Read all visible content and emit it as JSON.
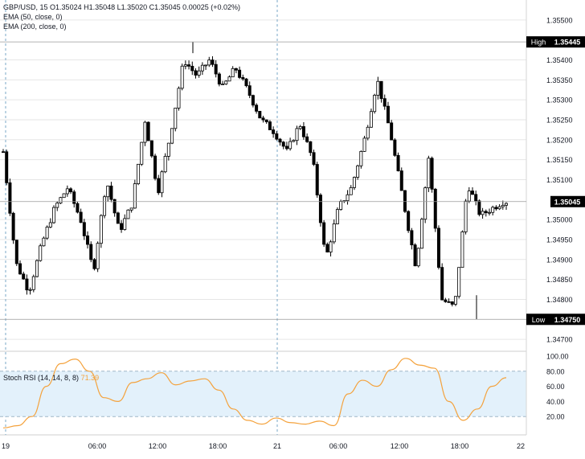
{
  "legend": {
    "symbol": "GBP/USD, 15",
    "ohlc": "O1.35024 H1.35048 L1.35020 C1.35045 0.00025 (+0.02%)",
    "ema50": "EMA (50, close, 0)",
    "ema200": "EMA (200, close, 0)"
  },
  "rsi_legend": {
    "label": "Stoch RSI (14, 14, 8, 8)",
    "value": "71.39"
  },
  "colors": {
    "candle": "#000000",
    "rsi": "#f4a23c",
    "band_fill": "#e3f1fb",
    "band_line": "#9fb7c9",
    "vline": "#7aa7c7",
    "label_bg": "#000000",
    "label_fg": "#ffffff"
  },
  "price_labels": {
    "high": {
      "tag": "High",
      "value": "1.35445"
    },
    "last": {
      "value": "1.35045"
    },
    "low": {
      "tag": "Low",
      "value": "1.34750"
    }
  },
  "chart_data": [
    {
      "type": "candlestick",
      "title": "GBP/USD, 15",
      "y_ticks": [
        "1.35500",
        "1.35400",
        "1.35350",
        "1.35300",
        "1.35250",
        "1.35200",
        "1.35150",
        "1.35100",
        "1.35000",
        "1.34950",
        "1.34900",
        "1.34850",
        "1.34800",
        "1.34700"
      ],
      "ylim": [
        1.3467,
        1.3555
      ],
      "x_ticks": [
        "19",
        "06:00",
        "12:00",
        "18:00",
        "21",
        "06:00",
        "12:00",
        "18:00",
        "22"
      ],
      "high": 1.35445,
      "low": 1.3475,
      "last": 1.35045,
      "ohlc_path_approx": [
        1.3517,
        1.3489,
        1.3482,
        1.3494,
        1.3503,
        1.3508,
        1.35,
        1.3487,
        1.351,
        1.3497,
        1.3504,
        1.3525,
        1.3507,
        1.3522,
        1.354,
        1.3536,
        1.354,
        1.3533,
        1.3538,
        1.3532,
        1.3525,
        1.3522,
        1.3517,
        1.3524,
        1.3515,
        1.349,
        1.3503,
        1.3508,
        1.352,
        1.3535,
        1.3522,
        1.3505,
        1.3488,
        1.3516,
        1.348,
        1.3478,
        1.3509,
        1.3501,
        1.3503,
        1.3505
      ]
    },
    {
      "type": "line",
      "title": "Stoch RSI (14, 14, 8, 8)",
      "y_ticks": [
        "100.00",
        "80.00",
        "60.00",
        "40.00",
        "20.00"
      ],
      "ylim": [
        0,
        100
      ],
      "band": [
        20,
        80
      ],
      "series": [
        {
          "name": "Stoch RSI",
          "values": [
            5,
            8,
            20,
            60,
            90,
            96,
            80,
            45,
            40,
            65,
            70,
            78,
            62,
            67,
            70,
            55,
            30,
            15,
            10,
            18,
            12,
            10,
            14,
            8,
            50,
            68,
            60,
            82,
            97,
            88,
            84,
            40,
            15,
            30,
            60,
            71.39
          ]
        }
      ]
    }
  ]
}
